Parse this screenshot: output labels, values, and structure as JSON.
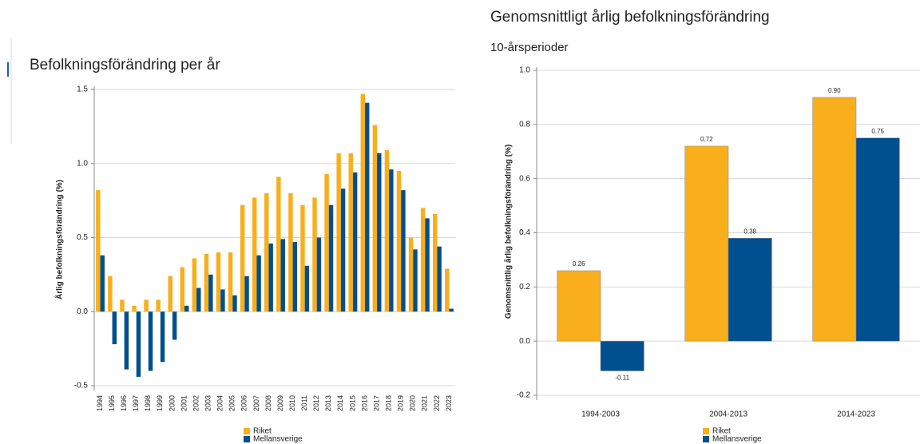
{
  "chart_data": [
    {
      "type": "bar",
      "title": "Befolkningsförändring per år",
      "y_label": "Årlig befolkningsförändring (%)",
      "categories": [
        "1994",
        "1995",
        "1996",
        "1997",
        "1998",
        "1999",
        "2000",
        "2001",
        "2002",
        "2003",
        "2004",
        "2005",
        "2006",
        "2007",
        "2008",
        "2009",
        "2010",
        "2011",
        "2012",
        "2013",
        "2014",
        "2015",
        "2016",
        "2017",
        "2018",
        "2019",
        "2020",
        "2021",
        "2022",
        "2023"
      ],
      "series": [
        {
          "name": "Riket",
          "color": "#f9ae1b",
          "values": [
            0.82,
            0.24,
            0.08,
            0.04,
            0.08,
            0.08,
            0.24,
            0.3,
            0.36,
            0.39,
            0.4,
            0.4,
            0.72,
            0.77,
            0.8,
            0.91,
            0.8,
            0.72,
            0.77,
            0.93,
            1.07,
            1.07,
            1.47,
            1.26,
            1.09,
            0.95,
            0.5,
            0.7,
            0.66,
            0.29
          ]
        },
        {
          "name": "Mellansverige",
          "color": "#004f8f",
          "values": [
            0.38,
            -0.22,
            -0.39,
            -0.44,
            -0.4,
            -0.34,
            -0.19,
            0.04,
            0.16,
            0.25,
            0.15,
            0.11,
            0.24,
            0.38,
            0.46,
            0.49,
            0.47,
            0.31,
            0.5,
            0.72,
            0.83,
            0.94,
            1.41,
            1.07,
            0.96,
            0.82,
            0.42,
            0.63,
            0.44,
            0.02
          ]
        }
      ],
      "ylim": [
        -0.5,
        1.5
      ],
      "yticks": [
        1.5,
        {
          "value": 1,
          "label": "1.0"
        },
        0.5,
        {
          "value": 0,
          "label": "0.0"
        },
        -0.5
      ],
      "grid": true
    },
    {
      "type": "bar",
      "title": "Genomsnittligt årlig befolkningsförändring",
      "subtitle": "10-årsperioder",
      "y_label": "Genomsnittlig årlig befolkningsförändring (%)",
      "categories": [
        "1994-2003",
        "2004-2013",
        "2014-2023"
      ],
      "series": [
        {
          "name": "Riket",
          "color": "#f9ae1b",
          "values": [
            0.26,
            0.72,
            0.9
          ],
          "value_labels": [
            "0.26",
            "0.72",
            "0.90"
          ]
        },
        {
          "name": "Mellansverige",
          "color": "#004f8f",
          "values": [
            -0.11,
            0.38,
            0.75
          ],
          "value_labels": [
            "-0.11",
            "0.38",
            "0.75"
          ]
        }
      ],
      "ylim": [
        -0.2,
        1.0
      ],
      "yticks": [
        {
          "value": 1,
          "label": "1.0"
        },
        0.8,
        0.6,
        0.4,
        0.2,
        {
          "value": 0,
          "label": "0.0"
        },
        -0.2
      ],
      "grid": true
    }
  ]
}
